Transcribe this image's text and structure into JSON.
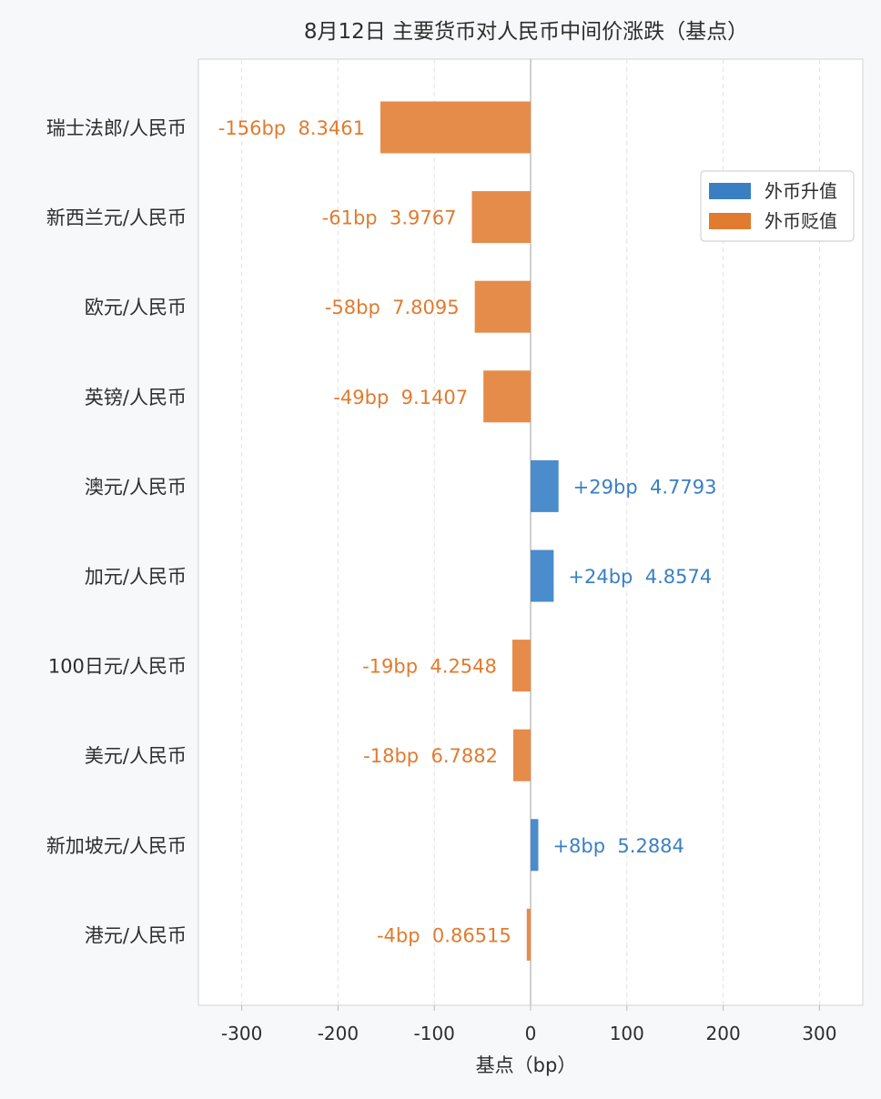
{
  "chart_data": {
    "type": "bar",
    "orientation": "horizontal",
    "title": "8月12日 主要货币对人民币中间价涨跌（基点）",
    "xlabel": "基点（bp）",
    "ylabel": "",
    "xlim": [
      -345,
      345
    ],
    "xticks": [
      -300,
      -200,
      -100,
      0,
      100,
      200,
      300
    ],
    "grid": "vertical-dashed",
    "legend_position": "top-right",
    "categories": [
      "瑞士法郎/人民币",
      "新西兰元/人民币",
      "欧元/人民币",
      "英镑/人民币",
      "澳元/人民币",
      "加元/人民币",
      "100日元/人民币",
      "美元/人民币",
      "新加坡元/人民币",
      "港元/人民币"
    ],
    "values": [
      -156,
      -61,
      -58,
      -49,
      29,
      24,
      -19,
      -18,
      8,
      -4
    ],
    "data_labels": [
      "-156bp  8.3461",
      "-61bp  3.9767",
      "-58bp  7.8095",
      "-49bp  9.1407",
      "+29bp  4.7793",
      "+24bp  4.8574",
      "-19bp  4.2548",
      "-18bp  6.7882",
      "+8bp  5.2884",
      "-4bp  0.86515"
    ],
    "series": [
      {
        "name": "外币升值",
        "color": "#3a7fc4"
      },
      {
        "name": "外币贬值",
        "color": "#e07b2f"
      }
    ],
    "label_colors": {
      "up": "#3a7fc4",
      "down": "#e07b2f"
    }
  }
}
